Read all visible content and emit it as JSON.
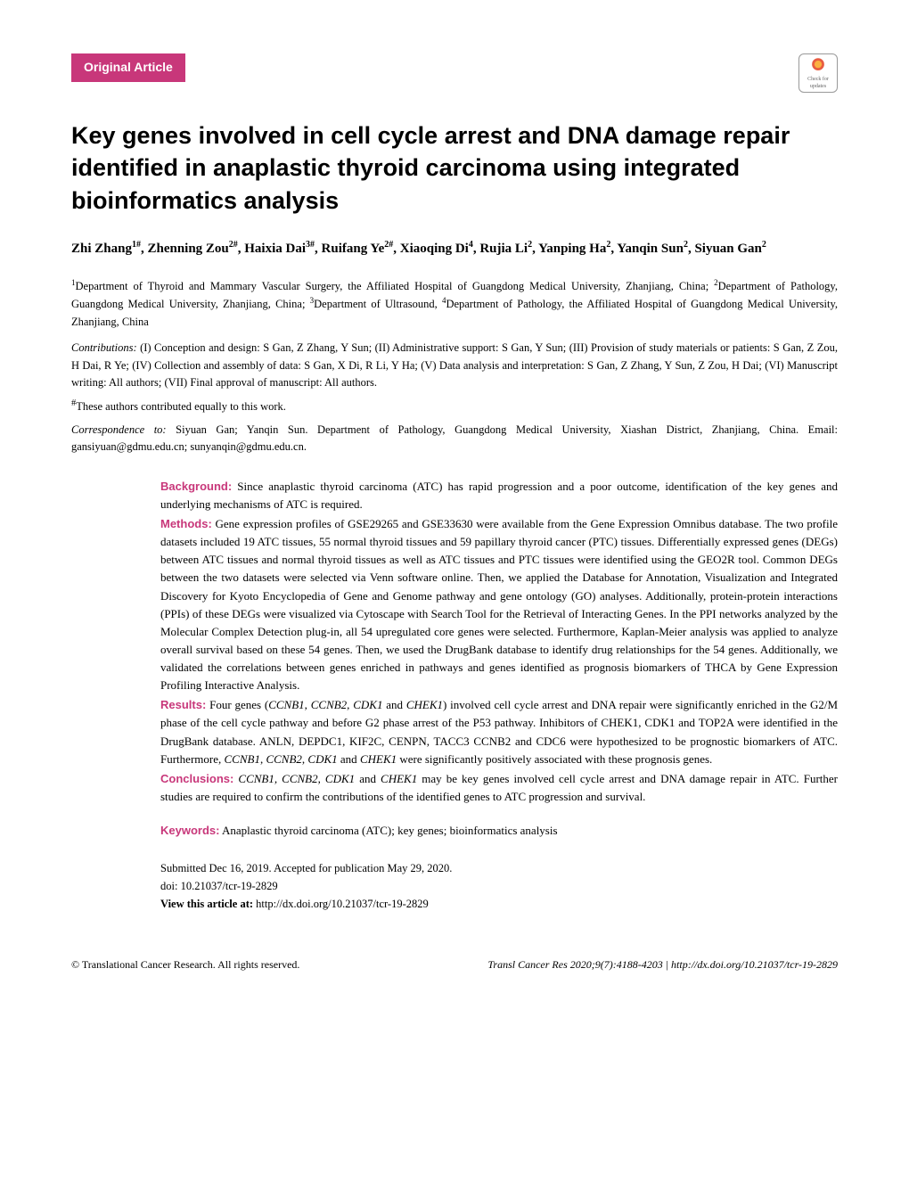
{
  "badge": {
    "label": "Original Article"
  },
  "checkUpdates": {
    "line1": "Check for",
    "line2": "updates"
  },
  "title": "Key genes involved in cell cycle arrest and DNA damage repair identified in anaplastic thyroid carcinoma using integrated bioinformatics analysis",
  "authors_html": "Zhi Zhang<sup>1#</sup>, Zhenning Zou<sup>2#</sup>, Haixia Dai<sup>3#</sup>, Ruifang Ye<sup>2#</sup>, Xiaoqing Di<sup>4</sup>, Rujia Li<sup>2</sup>, Yanping Ha<sup>2</sup>, Yanqin Sun<sup>2</sup>, Siyuan Gan<sup>2</sup>",
  "affiliations_html": "<sup>1</sup>Department of Thyroid and Mammary Vascular Surgery, the Affiliated Hospital of Guangdong Medical University, Zhanjiang, China; <sup>2</sup>Department of Pathology, Guangdong Medical University, Zhanjiang, China; <sup>3</sup>Department of Ultrasound, <sup>4</sup>Department of Pathology, the Affiliated Hospital of Guangdong Medical University, Zhanjiang, China",
  "contributions": {
    "label": "Contributions:",
    "text": " (I) Conception and design: S Gan, Z Zhang, Y Sun; (II) Administrative support: S Gan, Y Sun; (III) Provision of study materials or patients: S Gan, Z Zou, H Dai, R Ye; (IV) Collection and assembly of data: S Gan, X Di, R Li, Y Ha; (V) Data analysis and interpretation: S Gan, Z Zhang, Y Sun, Z Zou, H Dai; (VI) Manuscript writing: All authors; (VII) Final approval of manuscript: All authors."
  },
  "equal": "#These authors contributed equally to this work.",
  "correspondence": {
    "label": "Correspondence to:",
    "text": " Siyuan Gan; Yanqin Sun. Department of Pathology, Guangdong Medical University, Xiashan District, Zhanjiang, China. Email: gansiyuan@gdmu.edu.cn; sunyanqin@gdmu.edu.cn."
  },
  "abstract": {
    "background": {
      "label": "Background:",
      "text": " Since anaplastic thyroid carcinoma (ATC) has rapid progression and a poor outcome, identification of the key genes and underlying mechanisms of ATC is required."
    },
    "methods": {
      "label": "Methods:",
      "text": " Gene expression profiles of GSE29265 and GSE33630 were available from the Gene Expression Omnibus database. The two profile datasets included 19 ATC tissues, 55 normal thyroid tissues and 59 papillary thyroid cancer (PTC) tissues. Differentially expressed genes (DEGs) between ATC tissues and normal thyroid tissues as well as ATC tissues and PTC tissues were identified using the GEO2R tool. Common DEGs between the two datasets were selected via Venn software online. Then, we applied the Database for Annotation, Visualization and Integrated Discovery for Kyoto Encyclopedia of Gene and Genome pathway and gene ontology (GO) analyses. Additionally, protein-protein interactions (PPIs) of these DEGs were visualized via Cytoscape with Search Tool for the Retrieval of Interacting Genes. In the PPI networks analyzed by the Molecular Complex Detection plug-in, all 54 upregulated core genes were selected. Furthermore, Kaplan-Meier analysis was applied to analyze overall survival based on these 54 genes. Then, we used the DrugBank database to identify drug relationships for the 54 genes. Additionally, we validated the correlations between genes enriched in pathways and genes identified as prognosis biomarkers of THCA by Gene Expression Profiling Interactive Analysis."
    },
    "results": {
      "label": "Results:",
      "text_html": " Four genes (<span class=\"gene-italic\">CCNB1, CCNB2, CDK1</span> and <span class=\"gene-italic\">CHEK1</span>) involved cell cycle arrest and DNA repair were significantly enriched in the G2/M phase of the cell cycle pathway and before G2 phase arrest of the P53 pathway. Inhibitors of CHEK1, CDK1 and TOP2A were identified in the DrugBank database. ANLN, DEPDC1, KIF2C, CENPN, TACC3 CCNB2 and CDC6 were hypothesized to be prognostic biomarkers of ATC. Furthermore, <span class=\"gene-italic\">CCNB1</span>, <span class=\"gene-italic\">CCNB2</span>, <span class=\"gene-italic\">CDK1</span> and <span class=\"gene-italic\">CHEK1</span> were significantly positively associated with these prognosis genes."
    },
    "conclusions": {
      "label": "Conclusions:",
      "text_html": " <span class=\"gene-italic\">CCNB1, CCNB2, CDK1</span> and <span class=\"gene-italic\">CHEK1</span> may be key genes involved cell cycle arrest and DNA damage repair in ATC. Further studies are required to confirm the contributions of the identified genes to ATC progression and survival."
    },
    "keywords": {
      "label": "Keywords:",
      "text": " Anaplastic thyroid carcinoma (ATC); key genes; bioinformatics analysis"
    }
  },
  "submission": {
    "dates": "Submitted Dec 16, 2019. Accepted for publication May 29, 2020.",
    "doi": "doi: 10.21037/tcr-19-2829",
    "viewLabel": "View this article at:",
    "viewUrl": " http://dx.doi.org/10.21037/tcr-19-2829"
  },
  "footer": {
    "copyright": "© Translational Cancer Research. All rights reserved.",
    "citation": "Transl Cancer Res 2020;9(7):4188-4203 | http://dx.doi.org/10.21037/tcr-19-2829"
  },
  "colors": {
    "accent": "#c8377a",
    "text": "#000000",
    "bg": "#ffffff"
  }
}
